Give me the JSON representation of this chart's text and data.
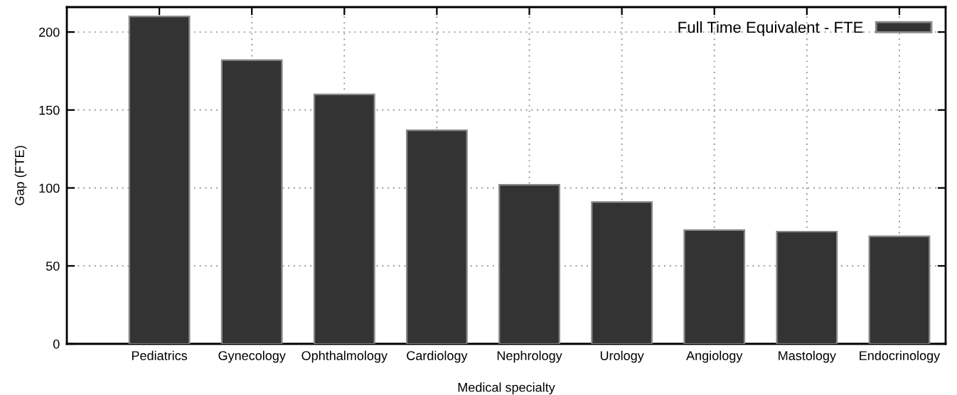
{
  "chart_data": {
    "type": "bar",
    "xlabel": "Medical specialty",
    "ylabel": "Gap (FTE)",
    "categories": [
      "Pediatrics",
      "Gynecology",
      "Ophthalmology",
      "Cardiology",
      "Nephrology",
      "Urology",
      "Angiology",
      "Mastology",
      "Endocrinology"
    ],
    "series": [
      {
        "name": "Full Time Equivalent - FTE",
        "color": "#333333",
        "values": [
          210,
          182,
          160,
          137,
          102,
          91,
          73,
          72,
          69
        ]
      }
    ],
    "ylim": [
      0,
      216
    ],
    "yticks": [
      0,
      50,
      100,
      150,
      200
    ],
    "grid": true,
    "legend": "top right"
  }
}
